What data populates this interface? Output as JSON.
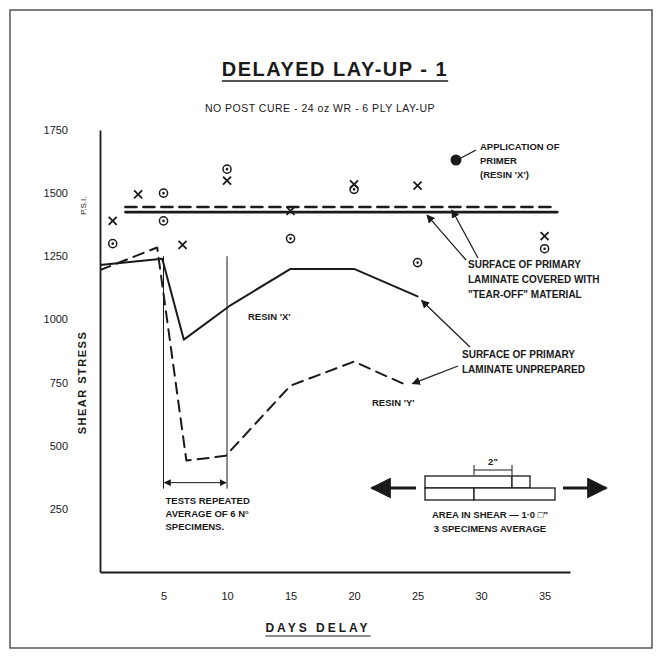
{
  "chart_data": {
    "type": "line",
    "title": "DELAYED LAY-UP - 1",
    "subtitle": "NO POST CURE - 24 oz WR - 6 PLY LAY-UP",
    "x_label": "DAYS DELAY",
    "y_label": "SHEAR STRESS",
    "y_unit": "P.S.I.",
    "xlim": [
      0,
      37
    ],
    "xticks": [
      5,
      10,
      15,
      20,
      25,
      30,
      35
    ],
    "ylim": [
      0,
      1750
    ],
    "yticks": [
      250,
      500,
      750,
      1000,
      1250,
      1500,
      1750
    ],
    "grid": false,
    "series": [
      {
        "type": "line",
        "line_style": "solid",
        "color": "#1a1a1a",
        "x": [
          2,
          36
        ],
        "values": [
          1425,
          1425
        ]
      },
      {
        "type": "line",
        "line_style": "dashed",
        "color": "#1a1a1a",
        "x": [
          2,
          36
        ],
        "values": [
          1445,
          1445
        ]
      },
      {
        "type": "line",
        "name": "RESIN 'X'",
        "line_style": "solid",
        "color": "#1a1a1a",
        "x": [
          0,
          4.9,
          6.6,
          10.3,
          15,
          20,
          25
        ],
        "values": [
          1215,
          1240,
          920,
          1057,
          1200,
          1200,
          1091
        ]
      },
      {
        "type": "line",
        "name": "RESIN 'Y'",
        "line_style": "dashed",
        "color": "#1a1a1a",
        "x": [
          0,
          4.5,
          6.8,
          9.9,
          15,
          20,
          24.2
        ],
        "values": [
          1195,
          1285,
          441,
          460,
          738,
          833,
          738
        ]
      },
      {
        "type": "scatter",
        "marker": "x",
        "color": "#1a1a1a",
        "x": [
          1,
          3,
          6.5,
          10,
          15,
          20,
          25,
          35
        ],
        "values": [
          1390,
          1495,
          1295,
          1550,
          1430,
          1535,
          1530,
          1330
        ]
      },
      {
        "type": "scatter",
        "marker": "circle-dot",
        "color": "#1a1a1a",
        "x": [
          1,
          5,
          5,
          10,
          15,
          20,
          25,
          35
        ],
        "values": [
          1300,
          1500,
          1390,
          1595,
          1320,
          1515,
          1225,
          1280
        ]
      }
    ],
    "annotations": {
      "primer": [
        "APPLICATION OF",
        "PRIMER",
        "(RESIN 'X')"
      ],
      "tear_off": [
        "SURFACE OF PRIMARY",
        "LAMINATE COVERED WITH",
        "\"TEAR-OFF\" MATERIAL"
      ],
      "unprepared": [
        "SURFACE OF PRIMARY",
        "LAMINATE UNPREPARED"
      ],
      "repeat": {
        "x": [
          5,
          10
        ],
        "y": [
          330,
          1250
        ],
        "text": [
          "TESTS REPEATED",
          "AVERAGE OF 6 N°",
          "SPECIMENS."
        ]
      },
      "specimen": {
        "dimension": "2\"",
        "text": [
          "AREA IN SHEAR — 1·0 □\"",
          "3 SPECIMENS AVERAGE"
        ]
      }
    }
  }
}
